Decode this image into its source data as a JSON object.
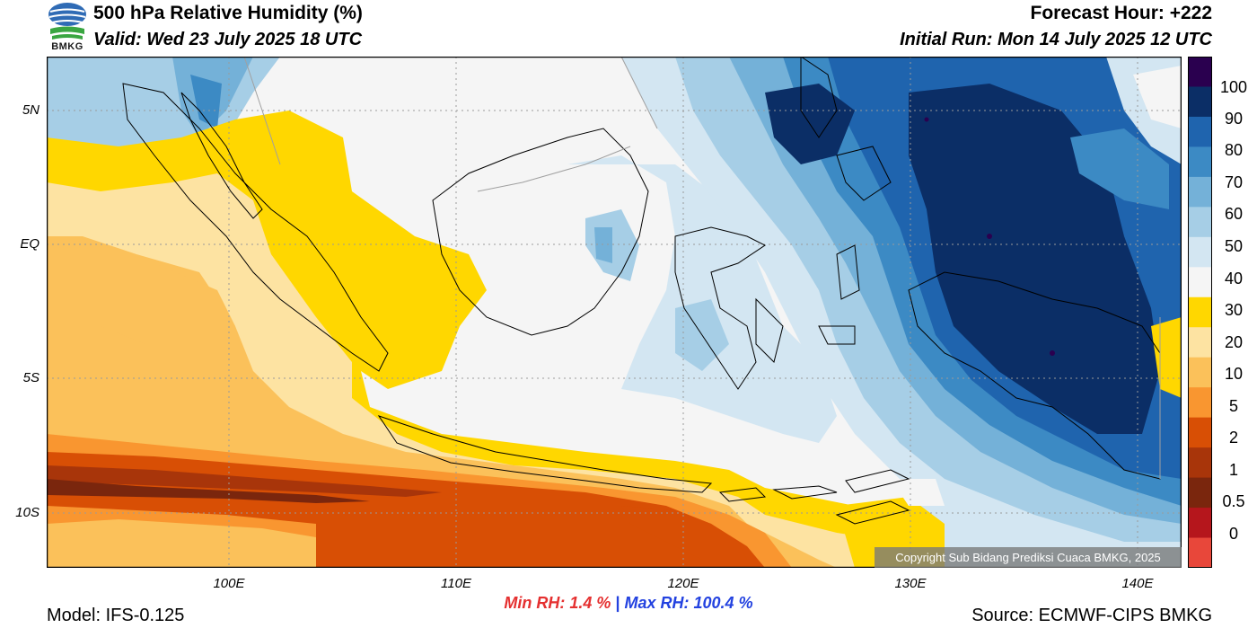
{
  "header": {
    "logo_text": "BMKG",
    "title": "500 hPa Relative Humidity (%)",
    "valid": "Valid: Wed 23 July 2025 18 UTC",
    "forecast_hour": "Forecast Hour: +222",
    "initial_run": "Initial Run: Mon 14 July 2025 12 UTC"
  },
  "map": {
    "lat_labels": [
      "5N",
      "EQ",
      "5S",
      "10S"
    ],
    "lon_labels": [
      "100E",
      "110E",
      "120E",
      "130E",
      "140E"
    ],
    "copyright": "Copyright Sub Bidang Prediksi Cuaca BMKG, 2025"
  },
  "colorbar": {
    "labels": [
      "100",
      "90",
      "80",
      "70",
      "60",
      "50",
      "40",
      "30",
      "20",
      "10",
      "5",
      "2",
      "1",
      "0.5",
      "0"
    ],
    "colors": [
      "#2a004f",
      "#0b2e66",
      "#1f64ae",
      "#3c8ac4",
      "#74b1d8",
      "#a6cee6",
      "#d3e6f2",
      "#f5f5f5",
      "#ffd700",
      "#fde3a2",
      "#fbc15a",
      "#f99630",
      "#d84f05",
      "#a8350a",
      "#7a260d",
      "#b5161c",
      "#e8473a"
    ]
  },
  "stats": {
    "min_rh": "Min RH:   1.4 %",
    "separator": "|",
    "max_rh": "Max RH: 100.4 %"
  },
  "footer": {
    "model": "Model: IFS-0.125",
    "source": "Source: ECMWF-CIPS BMKG"
  }
}
